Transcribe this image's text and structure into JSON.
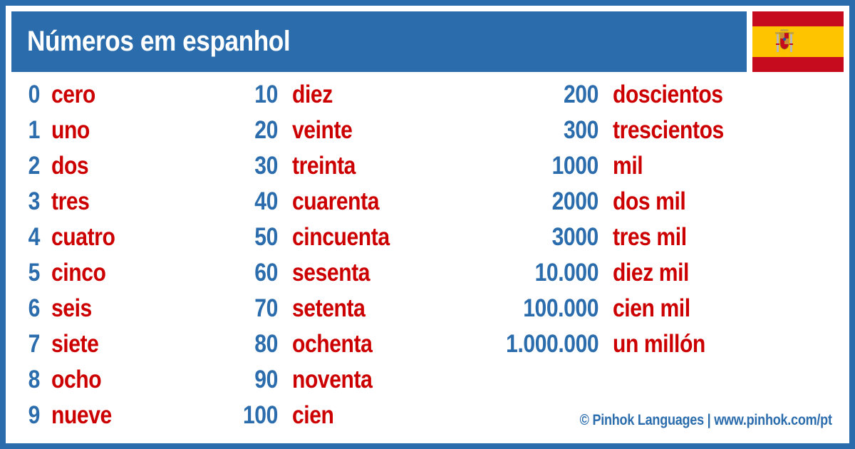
{
  "header": {
    "title": "Números em espanhol"
  },
  "flag": {
    "icon": "spain-flag-icon",
    "colors": {
      "red": "#c60b1e",
      "yellow": "#ffc400"
    }
  },
  "columns": [
    [
      {
        "num": "0",
        "word": "cero"
      },
      {
        "num": "1",
        "word": "uno"
      },
      {
        "num": "2",
        "word": "dos"
      },
      {
        "num": "3",
        "word": "tres"
      },
      {
        "num": "4",
        "word": "cuatro"
      },
      {
        "num": "5",
        "word": "cinco"
      },
      {
        "num": "6",
        "word": "seis"
      },
      {
        "num": "7",
        "word": "siete"
      },
      {
        "num": "8",
        "word": "ocho"
      },
      {
        "num": "9",
        "word": "nueve"
      }
    ],
    [
      {
        "num": "10",
        "word": "diez"
      },
      {
        "num": "20",
        "word": "veinte"
      },
      {
        "num": "30",
        "word": "treinta"
      },
      {
        "num": "40",
        "word": "cuarenta"
      },
      {
        "num": "50",
        "word": "cincuenta"
      },
      {
        "num": "60",
        "word": "sesenta"
      },
      {
        "num": "70",
        "word": "setenta"
      },
      {
        "num": "80",
        "word": "ochenta"
      },
      {
        "num": "90",
        "word": "noventa"
      },
      {
        "num": "100",
        "word": "cien"
      }
    ],
    [
      {
        "num": "200",
        "word": "doscientos"
      },
      {
        "num": "300",
        "word": "trescientos"
      },
      {
        "num": "1000",
        "word": "mil"
      },
      {
        "num": "2000",
        "word": "dos mil"
      },
      {
        "num": "3000",
        "word": "tres mil"
      },
      {
        "num": "10.000",
        "word": "diez mil"
      },
      {
        "num": "100.000",
        "word": "cien mil"
      },
      {
        "num": "1.000.000",
        "word": "un millón"
      }
    ]
  ],
  "footer": {
    "credit": "© Pinhok Languages | www.pinhok.com/pt"
  },
  "colors": {
    "brand_blue": "#2b6cad",
    "word_red": "#cc0000"
  }
}
